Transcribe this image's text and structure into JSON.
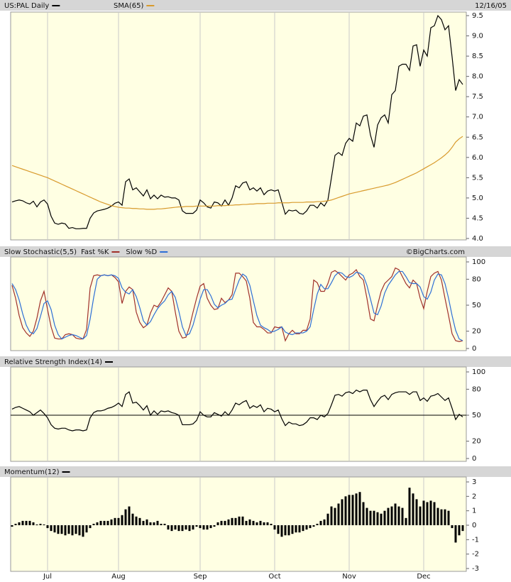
{
  "chart_data": [
    {
      "type": "line",
      "date": "12/16/05",
      "series": [
        {
          "name": "US:PAL Daily",
          "color": "#000000",
          "values": [
            4.9,
            4.93,
            4.95,
            4.93,
            4.88,
            4.85,
            4.92,
            4.78,
            4.9,
            4.95,
            4.85,
            4.55,
            4.38,
            4.35,
            4.38,
            4.36,
            4.25,
            4.27,
            4.24,
            4.24,
            4.25,
            4.25,
            4.5,
            4.63,
            4.68,
            4.7,
            4.72,
            4.75,
            4.8,
            4.87,
            4.9,
            4.82,
            5.4,
            5.47,
            5.2,
            5.25,
            5.15,
            5.05,
            5.2,
            4.98,
            5.07,
            4.98,
            5.07,
            5.02,
            5.03,
            5.0,
            5.0,
            4.95,
            4.68,
            4.62,
            4.62,
            4.62,
            4.7,
            4.95,
            4.88,
            4.78,
            4.75,
            4.9,
            4.88,
            4.8,
            4.95,
            4.82,
            5.0,
            5.3,
            5.25,
            5.37,
            5.4,
            5.2,
            5.25,
            5.17,
            5.25,
            5.08,
            5.17,
            5.2,
            5.17,
            5.2,
            4.9,
            4.6,
            4.7,
            4.68,
            4.7,
            4.62,
            4.6,
            4.68,
            4.82,
            4.82,
            4.75,
            4.88,
            4.8,
            4.95,
            5.5,
            6.05,
            6.12,
            6.05,
            6.35,
            6.47,
            6.4,
            6.85,
            6.78,
            7.02,
            7.05,
            6.55,
            6.25,
            6.8,
            6.98,
            7.05,
            6.85,
            7.55,
            7.65,
            8.25,
            8.3,
            8.3,
            8.15,
            8.75,
            8.78,
            8.25,
            8.65,
            8.5,
            9.2,
            9.25,
            9.5,
            9.4,
            9.15,
            9.25,
            8.48,
            7.65,
            7.92,
            7.8
          ]
        },
        {
          "name": "SMA(65)",
          "color": "#d89a2c",
          "values": [
            5.8,
            5.77,
            5.74,
            5.71,
            5.68,
            5.65,
            5.62,
            5.59,
            5.56,
            5.53,
            5.5,
            5.46,
            5.42,
            5.38,
            5.34,
            5.3,
            5.26,
            5.22,
            5.18,
            5.14,
            5.1,
            5.06,
            5.02,
            4.98,
            4.94,
            4.9,
            4.87,
            4.84,
            4.81,
            4.79,
            4.77,
            4.76,
            4.75,
            4.75,
            4.74,
            4.74,
            4.73,
            4.73,
            4.72,
            4.72,
            4.72,
            4.73,
            4.73,
            4.74,
            4.75,
            4.76,
            4.77,
            4.78,
            4.78,
            4.79,
            4.79,
            4.79,
            4.8,
            4.8,
            4.8,
            4.8,
            4.8,
            4.8,
            4.81,
            4.81,
            4.81,
            4.82,
            4.82,
            4.83,
            4.83,
            4.84,
            4.84,
            4.85,
            4.85,
            4.86,
            4.86,
            4.86,
            4.87,
            4.87,
            4.87,
            4.88,
            4.88,
            4.88,
            4.88,
            4.89,
            4.89,
            4.89,
            4.89,
            4.9,
            4.9,
            4.9,
            4.91,
            4.91,
            4.92,
            4.93,
            4.95,
            4.98,
            5.01,
            5.04,
            5.07,
            5.1,
            5.12,
            5.14,
            5.16,
            5.18,
            5.2,
            5.22,
            5.24,
            5.26,
            5.28,
            5.3,
            5.32,
            5.35,
            5.38,
            5.42,
            5.46,
            5.5,
            5.54,
            5.58,
            5.62,
            5.67,
            5.72,
            5.77,
            5.82,
            5.87,
            5.93,
            5.99,
            6.06,
            6.14,
            6.25,
            6.38,
            6.46,
            6.52
          ]
        }
      ],
      "ylim": [
        4,
        9.5
      ],
      "yticks": [
        {
          "value": 4,
          "label": "4.0"
        },
        4.5,
        {
          "value": 5,
          "label": "5.0"
        },
        5.5,
        {
          "value": 6,
          "label": "6.0"
        },
        6.5,
        {
          "value": 7,
          "label": "7.0"
        },
        7.5,
        {
          "value": 8,
          "label": "8.0"
        },
        8.5,
        {
          "value": 9,
          "label": "9.0"
        },
        9.5
      ]
    },
    {
      "type": "line",
      "title": "Slow Stochastic(5,5)",
      "credit": "©BigCharts.com",
      "series": [
        {
          "name": "Fast %K",
          "color": "#a0302a",
          "values": [
            73,
            58,
            38,
            24,
            18,
            14,
            20,
            35,
            55,
            66,
            45,
            25,
            12,
            11,
            11,
            16,
            17,
            16,
            12,
            11,
            11,
            22,
            70,
            84,
            85,
            84,
            85,
            84,
            85,
            82,
            77,
            52,
            66,
            71,
            68,
            42,
            30,
            24,
            27,
            41,
            50,
            48,
            54,
            62,
            70,
            66,
            42,
            20,
            12,
            13,
            25,
            42,
            58,
            72,
            75,
            58,
            50,
            45,
            46,
            58,
            53,
            56,
            62,
            87,
            87,
            83,
            78,
            58,
            30,
            25,
            25,
            22,
            18,
            18,
            25,
            24,
            25,
            9,
            17,
            21,
            17,
            17,
            21,
            21,
            34,
            79,
            76,
            66,
            66,
            75,
            88,
            90,
            87,
            83,
            79,
            85,
            87,
            91,
            83,
            79,
            58,
            34,
            32,
            50,
            66,
            75,
            79,
            83,
            93,
            91,
            83,
            75,
            70,
            79,
            75,
            58,
            46,
            66,
            83,
            87,
            89,
            79,
            58,
            38,
            17,
            9,
            8,
            9
          ]
        },
        {
          "name": "Slow %D",
          "color": "#2d6fd6",
          "values": [
            75,
            68,
            56,
            40,
            27,
            19,
            17,
            23,
            37,
            52,
            55,
            45,
            27,
            16,
            11,
            13,
            15,
            16,
            15,
            13,
            11,
            15,
            34,
            59,
            80,
            84,
            85,
            84,
            85,
            84,
            81,
            70,
            65,
            63,
            68,
            60,
            47,
            32,
            27,
            31,
            39,
            46,
            51,
            55,
            62,
            66,
            59,
            43,
            25,
            15,
            17,
            27,
            42,
            57,
            68,
            68,
            61,
            51,
            47,
            50,
            52,
            56,
            57,
            68,
            79,
            86,
            83,
            73,
            55,
            38,
            27,
            24,
            22,
            19,
            20,
            22,
            25,
            19,
            17,
            16,
            18,
            18,
            18,
            20,
            25,
            45,
            63,
            74,
            69,
            69,
            76,
            84,
            88,
            87,
            83,
            82,
            84,
            88,
            87,
            84,
            73,
            57,
            41,
            39,
            49,
            64,
            73,
            79,
            85,
            89,
            89,
            83,
            76,
            75,
            75,
            71,
            60,
            57,
            65,
            79,
            86,
            85,
            75,
            58,
            38,
            21,
            11,
            9
          ]
        }
      ],
      "ylim": [
        0,
        100
      ],
      "yticks": [
        0,
        20,
        50,
        80,
        100
      ]
    },
    {
      "type": "line",
      "hline": 50,
      "series": [
        {
          "name": "Relative Strength Index(14)",
          "color": "#000000",
          "values": [
            57,
            59,
            60,
            58,
            56,
            54,
            50,
            53,
            56,
            52,
            47,
            39,
            35,
            34,
            35,
            35,
            33,
            32,
            33,
            33,
            32,
            33,
            47,
            53,
            55,
            55,
            56,
            58,
            59,
            61,
            64,
            60,
            74,
            77,
            64,
            65,
            61,
            56,
            61,
            50,
            55,
            51,
            55,
            54,
            55,
            53,
            52,
            50,
            39,
            39,
            39,
            40,
            44,
            54,
            50,
            48,
            48,
            53,
            51,
            49,
            54,
            50,
            56,
            64,
            62,
            65,
            67,
            58,
            61,
            59,
            62,
            54,
            58,
            57,
            54,
            56,
            46,
            38,
            42,
            40,
            40,
            38,
            39,
            42,
            47,
            47,
            45,
            50,
            48,
            52,
            62,
            73,
            74,
            72,
            76,
            77,
            75,
            79,
            77,
            79,
            79,
            68,
            60,
            66,
            71,
            73,
            68,
            74,
            76,
            77,
            77,
            77,
            74,
            77,
            77,
            67,
            70,
            66,
            72,
            73,
            75,
            71,
            67,
            70,
            58,
            45,
            51,
            48
          ]
        }
      ],
      "ylim": [
        0,
        100
      ],
      "yticks": [
        0,
        20,
        50,
        80,
        100
      ]
    },
    {
      "type": "bar",
      "series": [
        {
          "name": "Momentum(12)",
          "color": "#000000",
          "values": [
            -0.1,
            0.1,
            0.2,
            0.3,
            0.3,
            0.3,
            0.2,
            0.05,
            0.1,
            0.05,
            -0.2,
            -0.4,
            -0.5,
            -0.6,
            -0.6,
            -0.7,
            -0.6,
            -0.7,
            -0.6,
            -0.7,
            -0.8,
            -0.5,
            -0.2,
            0.1,
            0.2,
            0.3,
            0.3,
            0.3,
            0.4,
            0.5,
            0.5,
            0.7,
            1.1,
            1.3,
            0.8,
            0.6,
            0.5,
            0.3,
            0.4,
            0.2,
            0.2,
            0.3,
            0.1,
            0.1,
            -0.3,
            -0.4,
            -0.3,
            -0.4,
            -0.4,
            -0.3,
            -0.4,
            -0.3,
            -0.1,
            -0.2,
            -0.3,
            -0.3,
            -0.2,
            -0.1,
            0.2,
            0.3,
            0.3,
            0.4,
            0.5,
            0.5,
            0.6,
            0.6,
            0.3,
            0.4,
            0.3,
            0.2,
            0.3,
            0.2,
            0.2,
            0.1,
            -0.3,
            -0.6,
            -0.8,
            -0.7,
            -0.7,
            -0.6,
            -0.5,
            -0.5,
            -0.4,
            -0.3,
            -0.2,
            -0.1,
            0.1,
            0.3,
            0.4,
            0.8,
            1.3,
            1.2,
            1.5,
            1.8,
            2.0,
            2.1,
            2.1,
            2.2,
            2.3,
            1.6,
            1.2,
            1.0,
            1.0,
            0.9,
            0.8,
            1.0,
            1.2,
            1.3,
            1.5,
            1.3,
            1.2,
            0.5,
            2.6,
            2.2,
            1.8,
            1.3,
            1.7,
            1.6,
            1.7,
            1.6,
            1.2,
            1.1,
            1.1,
            1.0,
            -0.2,
            -1.2,
            -0.7,
            -0.4
          ]
        }
      ],
      "ylim": [
        -3,
        3
      ],
      "yticks": [
        -3,
        -2,
        -1,
        0,
        1,
        2,
        3
      ],
      "xticks": [
        {
          "value": 10,
          "label": "Jul"
        },
        {
          "value": 30,
          "label": "Aug"
        },
        {
          "value": 53,
          "label": "Sep"
        },
        {
          "value": 74,
          "label": "Oct"
        },
        {
          "value": 95,
          "label": "Nov"
        },
        {
          "value": 116,
          "label": "Dec"
        }
      ]
    }
  ]
}
